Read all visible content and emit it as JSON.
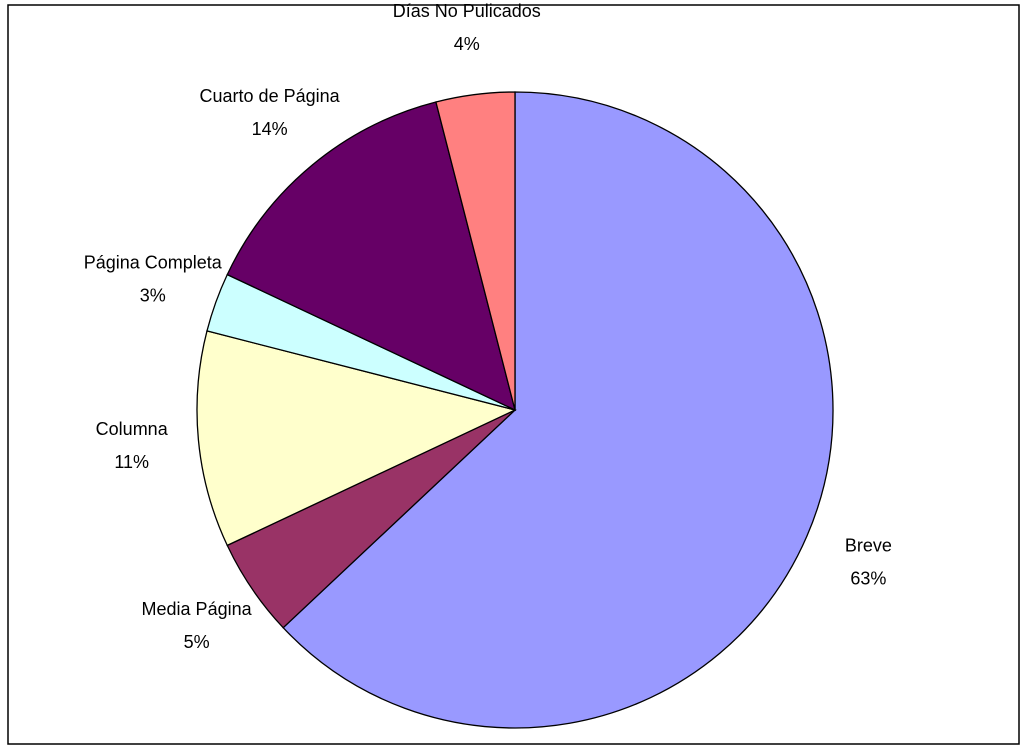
{
  "chart_data": {
    "type": "pie",
    "categories": [
      "Breve",
      "Media Página",
      "Columna",
      "Página Completa",
      "Cuarto de Página",
      "Días No Pulicados"
    ],
    "values": [
      63,
      5,
      11,
      3,
      14,
      4
    ],
    "value_labels": [
      "63%",
      "5%",
      "11%",
      "3%",
      "14%",
      "4%"
    ],
    "colors": [
      "#9999ff",
      "#993366",
      "#ffffcc",
      "#ccffff",
      "#660066",
      "#ff8080"
    ]
  }
}
